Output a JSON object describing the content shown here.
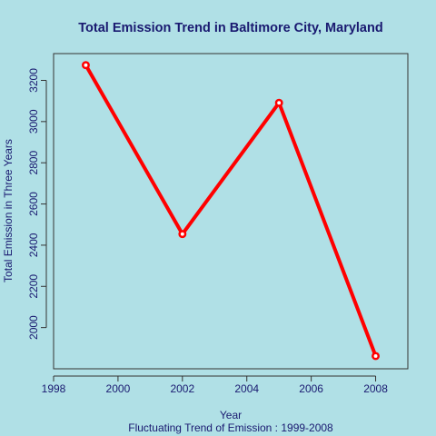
{
  "colors": {
    "background": "#b0e0e6",
    "text": "#191970",
    "line": "#ff0000",
    "axis": "#333333"
  },
  "chart_data": {
    "type": "line",
    "title": "Total Emission Trend in Baltimore City, Maryland",
    "xlabel": "Year",
    "ylabel": "Total Emission in Three Years",
    "subtitle": "Fluctuating Trend of Emission : 1999-2008",
    "x": [
      1999,
      2002,
      2005,
      2008
    ],
    "y": [
      3274,
      2454,
      3091,
      1862
    ],
    "xlim": [
      1998,
      2009
    ],
    "ylim": [
      1800,
      3330
    ],
    "xticks": [
      "1998",
      "2000",
      "2002",
      "2004",
      "2006",
      "2008"
    ],
    "yticks": [
      "2000",
      "2200",
      "2400",
      "2600",
      "2800",
      "3000",
      "3200"
    ],
    "grid": false,
    "legend": "none"
  }
}
